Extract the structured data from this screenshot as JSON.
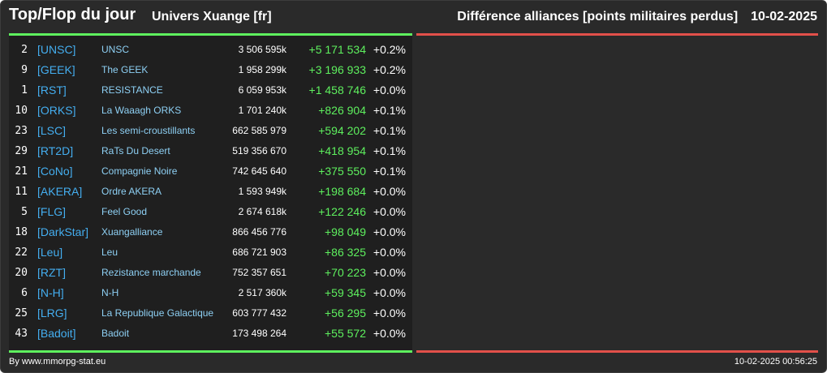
{
  "header": {
    "title": "Top/Flop du jour",
    "universe": "Univers Xuange [fr]",
    "metric": "Différence alliances [points militaires perdus]",
    "date": "10-02-2025"
  },
  "colors": {
    "background": "#2a2a2a",
    "positive": "#5ef05e",
    "negative": "#e2504a",
    "tag": "#44aef0",
    "name": "#8ed0f4"
  },
  "top_rows": [
    {
      "rank": "2",
      "tag": "[UNSC]",
      "name": "UNSC",
      "points": "3 506 595k",
      "diff": "+5 171 534",
      "pct": "+0.2%"
    },
    {
      "rank": "9",
      "tag": "[GEEK]",
      "name": "The GEEK",
      "points": "1 958 299k",
      "diff": "+3 196 933",
      "pct": "+0.2%"
    },
    {
      "rank": "1",
      "tag": "[RST]",
      "name": "RESISTANCE",
      "points": "6 059 953k",
      "diff": "+1 458 746",
      "pct": "+0.0%"
    },
    {
      "rank": "10",
      "tag": "[ORKS]",
      "name": "La Waaagh ORKS",
      "points": "1 701 240k",
      "diff": "+826 904",
      "pct": "+0.1%"
    },
    {
      "rank": "23",
      "tag": "[LSC]",
      "name": "Les semi-croustillants",
      "points": "662 585 979",
      "diff": "+594 202",
      "pct": "+0.1%"
    },
    {
      "rank": "29",
      "tag": "[RT2D]",
      "name": "RaTs Du Desert",
      "points": "519 356 670",
      "diff": "+418 954",
      "pct": "+0.1%"
    },
    {
      "rank": "21",
      "tag": "[CoNo]",
      "name": "Compagnie Noire",
      "points": "742 645 640",
      "diff": "+375 550",
      "pct": "+0.1%"
    },
    {
      "rank": "11",
      "tag": "[AKERA]",
      "name": "Ordre AKERA",
      "points": "1 593 949k",
      "diff": "+198 684",
      "pct": "+0.0%"
    },
    {
      "rank": "5",
      "tag": "[FLG]",
      "name": "Feel Good",
      "points": "2 674 618k",
      "diff": "+122 246",
      "pct": "+0.0%"
    },
    {
      "rank": "18",
      "tag": "[DarkStar]",
      "name": "Xuangalliance",
      "points": "866 456 776",
      "diff": "+98 049",
      "pct": "+0.0%"
    },
    {
      "rank": "22",
      "tag": "[Leu]",
      "name": "Leu",
      "points": "686 721 903",
      "diff": "+86 325",
      "pct": "+0.0%"
    },
    {
      "rank": "20",
      "tag": "[RZT]",
      "name": "Rezistance marchande",
      "points": "752 357 651",
      "diff": "+70 223",
      "pct": "+0.0%"
    },
    {
      "rank": "6",
      "tag": "[N-H]",
      "name": "N-H",
      "points": "2 517 360k",
      "diff": "+59 345",
      "pct": "+0.0%"
    },
    {
      "rank": "25",
      "tag": "[LRG]",
      "name": "La Republique Galactique",
      "points": "603 777 432",
      "diff": "+56 295",
      "pct": "+0.0%"
    },
    {
      "rank": "43",
      "tag": "[Badoit]",
      "name": "Badoit",
      "points": "173 498 264",
      "diff": "+55 572",
      "pct": "+0.0%"
    }
  ],
  "flop_rows": [],
  "footer": {
    "source": "By www.mmorpg-stat.eu",
    "timestamp": "10-02-2025 00:56:25"
  }
}
